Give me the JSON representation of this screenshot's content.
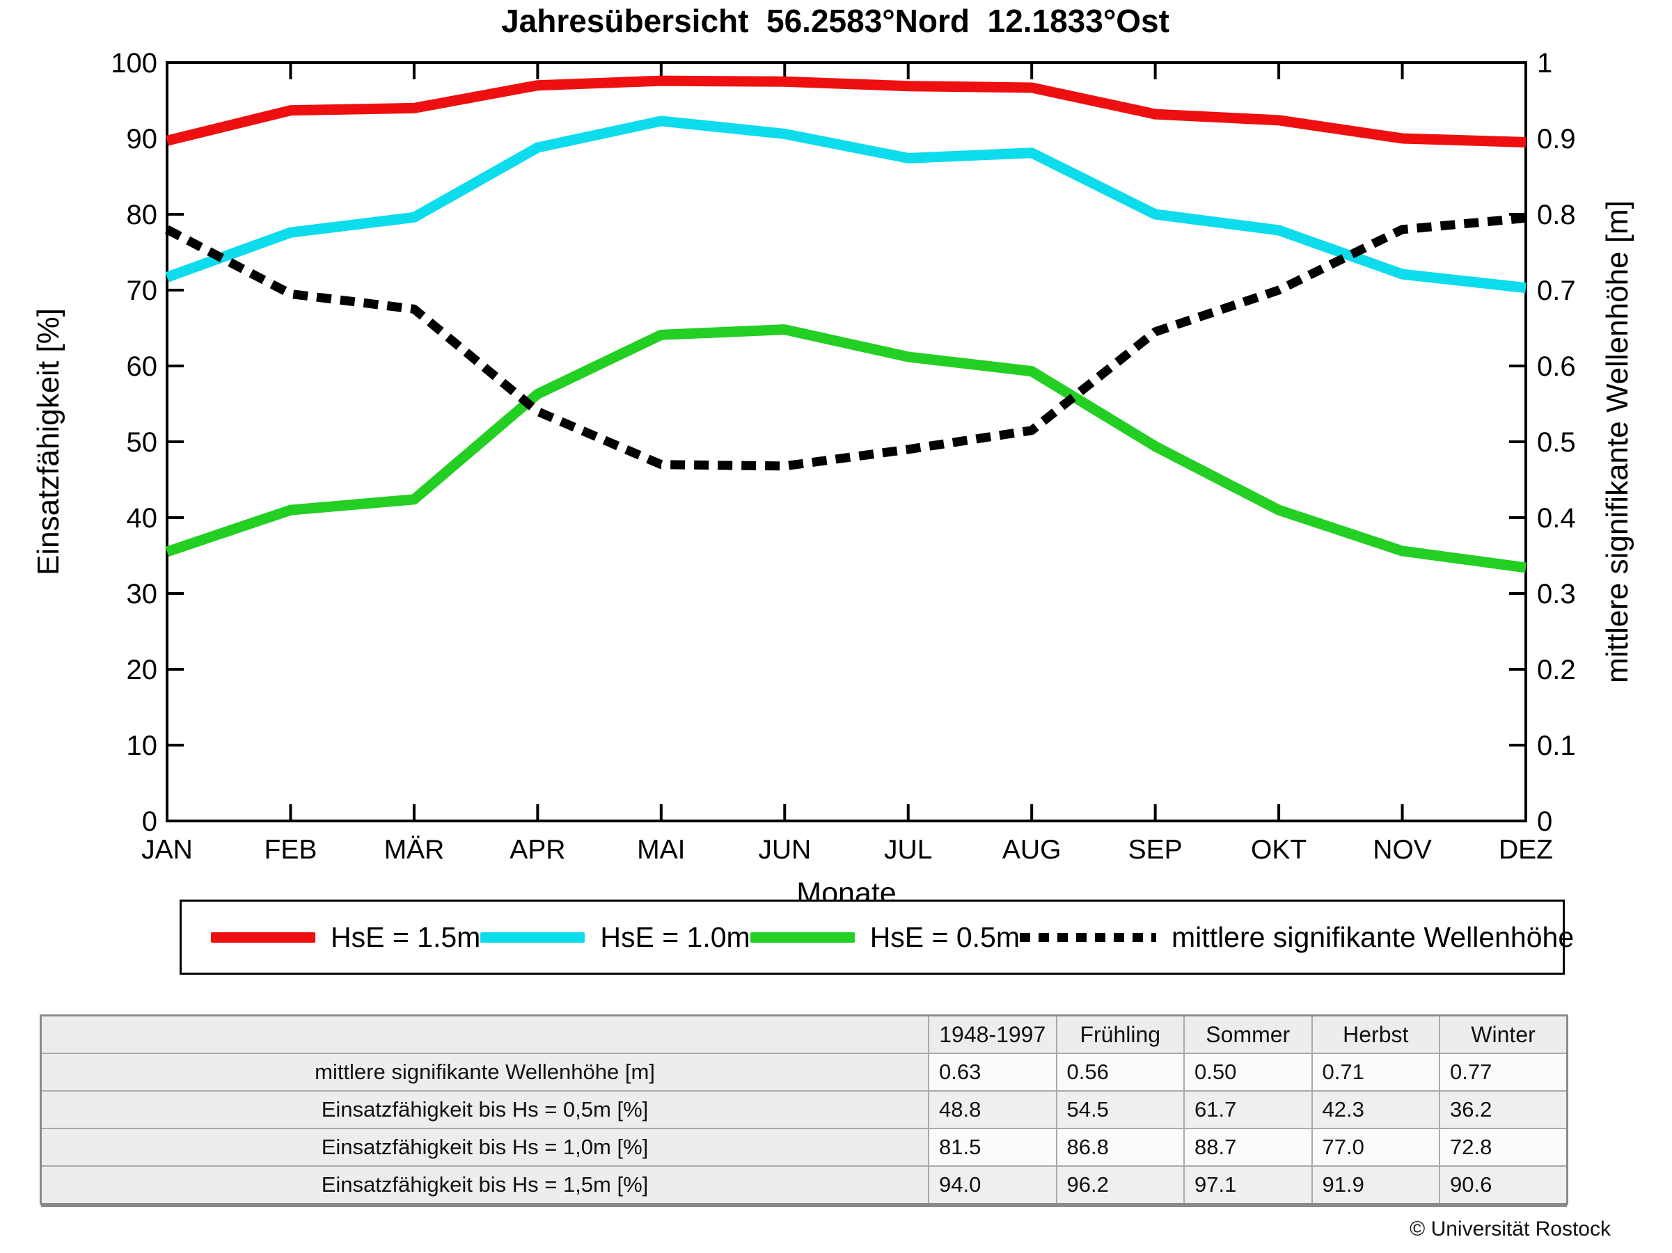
{
  "title": "Jahresübersicht  56.2583°Nord  12.1833°Ost",
  "chart_data": {
    "type": "line",
    "categories": [
      "JAN",
      "FEB",
      "MÄR",
      "APR",
      "MAI",
      "JUN",
      "JUL",
      "AUG",
      "SEP",
      "OKT",
      "NOV",
      "DEZ"
    ],
    "xlabel": "Monate",
    "grid": false,
    "legend_position": "below",
    "left_axis": {
      "label": "Einsatzfähigkeit [%]",
      "min": 0,
      "max": 100,
      "step": 10
    },
    "right_axis": {
      "label": "mittlere signifikante Wellenhöhe [m]",
      "min": 0,
      "max": 1,
      "step": 0.1
    },
    "series": [
      {
        "name": "HsE = 1.5m",
        "axis": "left",
        "color": "#ee1010",
        "style": "solid",
        "values": [
          89.7,
          93.7,
          94.0,
          97.0,
          97.6,
          97.5,
          96.9,
          96.7,
          93.2,
          92.4,
          90.0,
          89.5
        ]
      },
      {
        "name": "HsE = 1.0m",
        "axis": "left",
        "color": "#0cdcec",
        "style": "solid",
        "values": [
          71.7,
          77.6,
          79.6,
          88.8,
          92.3,
          90.6,
          87.4,
          88.1,
          80.0,
          77.9,
          72.1,
          70.3
        ]
      },
      {
        "name": "HsE = 0.5m",
        "axis": "left",
        "color": "#22cf22",
        "style": "solid",
        "values": [
          35.5,
          41.0,
          42.4,
          56.3,
          64.1,
          64.8,
          61.2,
          59.3,
          49.4,
          41.0,
          35.6,
          33.4
        ]
      },
      {
        "name": "mittlere signifikante Wellenhöhe",
        "axis": "right",
        "color": "#000000",
        "style": "dashed",
        "values": [
          0.78,
          0.695,
          0.675,
          0.54,
          0.47,
          0.468,
          0.49,
          0.515,
          0.645,
          0.7,
          0.78,
          0.795
        ]
      }
    ]
  },
  "table": {
    "columns": [
      "1948-1997",
      "Frühling",
      "Sommer",
      "Herbst",
      "Winter"
    ],
    "rows": [
      {
        "label": "mittlere signifikante Wellenhöhe [m]",
        "values": [
          "0.63",
          "0.56",
          "0.50",
          "0.71",
          "0.77"
        ]
      },
      {
        "label": "Einsatzfähigkeit bis Hs = 0,5m [%]",
        "values": [
          "48.8",
          "54.5",
          "61.7",
          "42.3",
          "36.2"
        ]
      },
      {
        "label": "Einsatzfähigkeit bis Hs = 1,0m [%]",
        "values": [
          "81.5",
          "86.8",
          "88.7",
          "77.0",
          "72.8"
        ]
      },
      {
        "label": "Einsatzfähigkeit bis Hs = 1,5m [%]",
        "values": [
          "94.0",
          "96.2",
          "97.1",
          "91.9",
          "90.6"
        ]
      }
    ]
  },
  "footer": {
    "copyright": "© Universität Rostock"
  }
}
